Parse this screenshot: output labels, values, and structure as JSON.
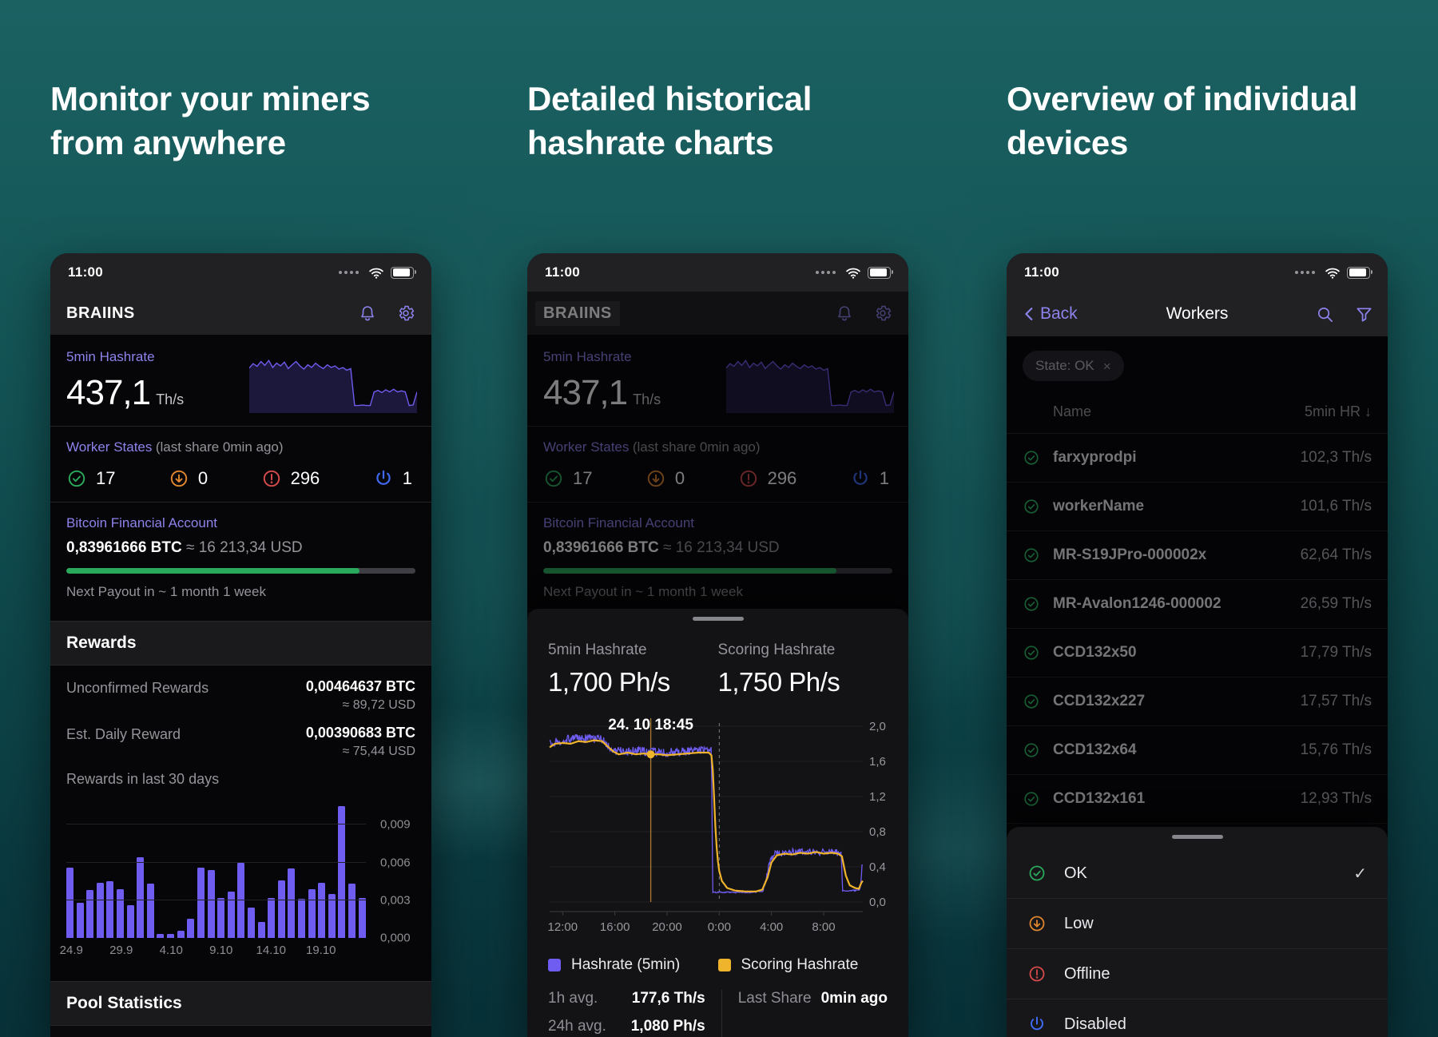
{
  "page": {
    "headings": [
      "Monitor your miners from anywhere",
      "Detailed historical hashrate charts",
      "Overview of individual devices"
    ]
  },
  "colors": {
    "accent_purple": "#8d83ec",
    "chart_purple": "#6f5cf1",
    "chart_yellow": "#f0b42c",
    "green": "#2aa95c",
    "orange": "#e0862f",
    "red": "#d84b4b",
    "blue": "#3f6af5",
    "teal_bg_top": "#1b6162",
    "teal_bg_bottom": "#083138"
  },
  "status_bar": {
    "time": "11:00"
  },
  "phone1": {
    "app_title": "BRAIINS",
    "hashrate_card": {
      "label": "5min Hashrate",
      "value": "437,1",
      "unit": "Th/s"
    },
    "worker_states": {
      "label": "Worker States",
      "sublabel": "(last share 0min ago)",
      "items": [
        {
          "state": "ok",
          "count": "17"
        },
        {
          "state": "low",
          "count": "0"
        },
        {
          "state": "offline",
          "count": "296"
        },
        {
          "state": "disabled",
          "count": "1"
        }
      ]
    },
    "financial": {
      "label": "Bitcoin Financial Account",
      "btc": "0,83961666 BTC",
      "approx": "≈ 16 213,34 USD",
      "progress_pct": 84,
      "next_payout": "Next Payout in ~ 1 month 1 week"
    },
    "rewards": {
      "title": "Rewards",
      "rows": [
        {
          "label": "Unconfirmed Rewards",
          "btc": "0,00464637 BTC",
          "usd": "≈ 89,72 USD"
        },
        {
          "label": "Est. Daily Reward",
          "btc": "0,00390683 BTC",
          "usd": "≈ 75,44 USD"
        }
      ],
      "chart_label": "Rewards in last 30 days"
    },
    "pool_statistics_title": "Pool Statistics"
  },
  "phone2": {
    "sheet": {
      "col1_label": "5min Hashrate",
      "col1_value": "1,700 Ph/s",
      "col2_label": "Scoring Hashrate",
      "col2_value": "1,750 Ph/s",
      "stats": {
        "h1_label": "1h avg.",
        "h1_value": "177,6 Th/s",
        "h24_label": "24h avg.",
        "h24_value": "1,080 Ph/s",
        "last_share_label": "Last Share",
        "last_share_value": "0min ago"
      }
    }
  },
  "phone3": {
    "nav": {
      "back": "Back",
      "title": "Workers"
    },
    "filter_chip": {
      "label": "State: OK",
      "close": "×"
    },
    "table": {
      "name_header": "Name",
      "hr_header": "5min HR",
      "sort_icon": "↓",
      "rows": [
        {
          "name": "farxyprodpi",
          "hashrate": "102,3 Th/s"
        },
        {
          "name": "workerName",
          "hashrate": "101,6 Th/s"
        },
        {
          "name": "MR-S19JPro-000002x",
          "hashrate": "62,64 Th/s"
        },
        {
          "name": "MR-Avalon1246-000002",
          "hashrate": "26,59 Th/s"
        },
        {
          "name": "CCD132x50",
          "hashrate": "17,79 Th/s"
        },
        {
          "name": "CCD132x227",
          "hashrate": "17,57 Th/s"
        },
        {
          "name": "CCD132x64",
          "hashrate": "15,76 Th/s"
        },
        {
          "name": "CCD132x161",
          "hashrate": "12,93 Th/s"
        }
      ]
    },
    "state_sheet": {
      "options": [
        {
          "state": "ok",
          "label": "OK",
          "selected": true,
          "check": "✓"
        },
        {
          "state": "low",
          "label": "Low",
          "selected": false
        },
        {
          "state": "offline",
          "label": "Offline",
          "selected": false
        },
        {
          "state": "disabled",
          "label": "Disabled",
          "selected": false
        }
      ]
    }
  },
  "chart_data": [
    {
      "id": "hashrate-sparkline",
      "type": "line",
      "title": "5min Hashrate sparkline (437,1 Th/s current)",
      "values": [
        0.74,
        0.82,
        0.77,
        0.86,
        0.79,
        0.88,
        0.75,
        0.83,
        0.78,
        0.85,
        0.73,
        0.8,
        0.86,
        0.78,
        0.72,
        0.8,
        0.75,
        0.83,
        0.77,
        0.73,
        0.8,
        0.75,
        0.78,
        0.72,
        0.75,
        0.7,
        0.73,
        0.05,
        0.05,
        0.06,
        0.05,
        0.05,
        0.3,
        0.33,
        0.29,
        0.34,
        0.3,
        0.35,
        0.3,
        0.32,
        0.3,
        0.05,
        0.06,
        0.3
      ]
    },
    {
      "id": "rewards-30d",
      "type": "bar",
      "title": "Rewards in last 30 days",
      "ylabel": "BTC",
      "ylim": [
        0,
        0.0108
      ],
      "yticks": [
        0,
        0.003,
        0.006,
        0.009
      ],
      "ytick_labels": [
        "0,000",
        "0,003",
        "0,006",
        "0,009"
      ],
      "xtick_indices": [
        0,
        5,
        10,
        15,
        20,
        25
      ],
      "xtick_labels": [
        "24.9",
        "29.9",
        "4.10",
        "9.10",
        "14.10",
        "19.10"
      ],
      "values": [
        0.0056,
        0.0028,
        0.0038,
        0.0044,
        0.0045,
        0.0039,
        0.0026,
        0.0064,
        0.0043,
        0.0003,
        0.0003,
        0.0006,
        0.0015,
        0.0056,
        0.0054,
        0.0032,
        0.0037,
        0.006,
        0.0024,
        0.0013,
        0.0032,
        0.0046,
        0.0055,
        0.0031,
        0.0039,
        0.0044,
        0.0035,
        0.0105,
        0.0043,
        0.0032
      ]
    },
    {
      "id": "hashrate-history",
      "type": "line",
      "title": "24h hashrate history (Ph/s)",
      "x_range": [
        11,
        35
      ],
      "ylim": [
        0,
        2.0
      ],
      "yticks": [
        {
          "v": 0.0,
          "label": "0,0"
        },
        {
          "v": 0.4,
          "label": "0,4"
        },
        {
          "v": 0.8,
          "label": "0,8"
        },
        {
          "v": 1.2,
          "label": "1,2"
        },
        {
          "v": 1.6,
          "label": "1,6"
        },
        {
          "v": 2.0,
          "label": "2,0"
        }
      ],
      "xticks": [
        {
          "t": 12,
          "label": "12:00"
        },
        {
          "t": 16,
          "label": "16:00"
        },
        {
          "t": 20,
          "label": "20:00"
        },
        {
          "t": 24,
          "label": "0:00"
        },
        {
          "t": 28,
          "label": "4:00"
        },
        {
          "t": 32,
          "label": "8:00"
        }
      ],
      "midnight_t": 24,
      "tooltip": {
        "t": 18.75,
        "label": "24. 10 18:45"
      },
      "series": [
        {
          "id": "5min",
          "name": "Hashrate (5min)",
          "color": "#6f5cf1",
          "points": [
            [
              11,
              1.8
            ],
            [
              12,
              1.84
            ],
            [
              13,
              1.86
            ],
            [
              14,
              1.86
            ],
            [
              15,
              1.85
            ],
            [
              15.4,
              1.78
            ],
            [
              16,
              1.71
            ],
            [
              17,
              1.72
            ],
            [
              18,
              1.71
            ],
            [
              19,
              1.71
            ],
            [
              20,
              1.7
            ],
            [
              21,
              1.71
            ],
            [
              22,
              1.72
            ],
            [
              23,
              1.73
            ],
            [
              23.4,
              1.72
            ],
            [
              23.5,
              0.11
            ],
            [
              24.5,
              0.11
            ],
            [
              25.5,
              0.11
            ],
            [
              26.5,
              0.11
            ],
            [
              27.35,
              0.12
            ],
            [
              27.65,
              0.3
            ],
            [
              27.95,
              0.5
            ],
            [
              28.3,
              0.55
            ],
            [
              29,
              0.56
            ],
            [
              30,
              0.57
            ],
            [
              31,
              0.57
            ],
            [
              32,
              0.57
            ],
            [
              33,
              0.56
            ],
            [
              33.35,
              0.55
            ],
            [
              33.45,
              0.13
            ],
            [
              34,
              0.13
            ],
            [
              34.6,
              0.13
            ],
            [
              34.8,
              0.15
            ],
            [
              34.95,
              0.42
            ]
          ],
          "noise_regions": [
            [
              11,
              23.38,
              0.05
            ],
            [
              23.38,
              27.4,
              0.007
            ],
            [
              27.4,
              33.35,
              0.04
            ],
            [
              33.35,
              34.8,
              0.007
            ],
            [
              34.8,
              35.01,
              0.02
            ]
          ]
        },
        {
          "id": "scoring",
          "name": "Scoring Hashrate",
          "color": "#f0b42c",
          "points": [
            [
              11,
              1.76
            ],
            [
              11.4,
              1.8
            ],
            [
              12,
              1.81
            ],
            [
              12.6,
              1.8
            ],
            [
              13.2,
              1.83
            ],
            [
              13.8,
              1.82
            ],
            [
              14.4,
              1.84
            ],
            [
              15,
              1.83
            ],
            [
              15.3,
              1.79
            ],
            [
              15.9,
              1.71
            ],
            [
              16.3,
              1.68
            ],
            [
              17,
              1.7
            ],
            [
              17.6,
              1.68
            ],
            [
              18.2,
              1.69
            ],
            [
              18.75,
              1.68
            ],
            [
              19.4,
              1.68
            ],
            [
              20,
              1.67
            ],
            [
              20.8,
              1.68
            ],
            [
              21.6,
              1.69
            ],
            [
              22.4,
              1.7
            ],
            [
              23.2,
              1.7
            ],
            [
              23.45,
              1.66
            ],
            [
              23.6,
              1.2
            ],
            [
              23.75,
              0.7
            ],
            [
              23.95,
              0.38
            ],
            [
              24.2,
              0.24
            ],
            [
              24.6,
              0.16
            ],
            [
              25.2,
              0.13
            ],
            [
              26,
              0.12
            ],
            [
              26.8,
              0.12
            ],
            [
              27.3,
              0.14
            ],
            [
              27.7,
              0.28
            ],
            [
              28,
              0.45
            ],
            [
              28.4,
              0.53
            ],
            [
              29,
              0.55
            ],
            [
              29.6,
              0.54
            ],
            [
              30.2,
              0.56
            ],
            [
              30.8,
              0.55
            ],
            [
              31.4,
              0.57
            ],
            [
              32,
              0.55
            ],
            [
              32.6,
              0.56
            ],
            [
              33.1,
              0.55
            ],
            [
              33.4,
              0.52
            ],
            [
              33.7,
              0.3
            ],
            [
              34,
              0.19
            ],
            [
              34.4,
              0.16
            ],
            [
              34.7,
              0.15
            ],
            [
              34.95,
              0.24
            ]
          ]
        }
      ]
    }
  ]
}
